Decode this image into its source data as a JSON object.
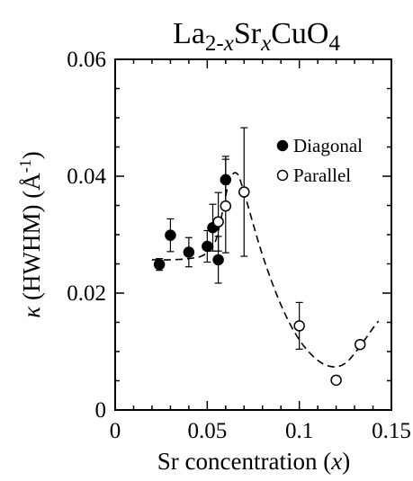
{
  "chart_data": {
    "type": "scatter",
    "title": {
      "base1": "La",
      "sub1": "2-",
      "sub1_italic": "x",
      "base2": "Sr",
      "sub2_italic": "x",
      "base3": "CuO",
      "sub3": "4"
    },
    "xlabel": {
      "text": "Sr concentration (",
      "italic": "x",
      "close": ")"
    },
    "ylabel": {
      "kappa": "κ",
      "text": " (HWHM) (Å",
      "sup": "-1",
      "close": ")"
    },
    "xlim": [
      0,
      0.15
    ],
    "ylim": [
      0,
      0.06
    ],
    "xticks": [
      0,
      0.05,
      0.1,
      0.15
    ],
    "xtick_labels": [
      "0",
      "0.05",
      "0.1",
      "0.15"
    ],
    "yticks": [
      0,
      0.02,
      0.04,
      0.06
    ],
    "ytick_labels": [
      "0",
      "0.02",
      "0.04",
      "0.06"
    ],
    "legend_position": "top-right",
    "grid": false,
    "series": [
      {
        "name": "Diagonal",
        "marker": "filled-circle",
        "color": "#000000",
        "points": [
          {
            "x": 0.024,
            "y": 0.0249,
            "err": 0.001
          },
          {
            "x": 0.03,
            "y": 0.0299,
            "err": 0.0028
          },
          {
            "x": 0.04,
            "y": 0.027,
            "err": 0.0025
          },
          {
            "x": 0.05,
            "y": 0.028,
            "err": 0.0027
          },
          {
            "x": 0.053,
            "y": 0.0312,
            "err": 0.004
          },
          {
            "x": 0.056,
            "y": 0.0257,
            "err": 0.004
          },
          {
            "x": 0.06,
            "y": 0.0394,
            "err": 0.004
          }
        ]
      },
      {
        "name": "Parallel",
        "marker": "open-circle",
        "color": "#000000",
        "points": [
          {
            "x": 0.056,
            "y": 0.0322,
            "err": 0.005
          },
          {
            "x": 0.06,
            "y": 0.0349,
            "err": 0.008
          },
          {
            "x": 0.07,
            "y": 0.0373,
            "err": 0.011
          },
          {
            "x": 0.1,
            "y": 0.0144,
            "err": 0.004
          },
          {
            "x": 0.12,
            "y": 0.0051,
            "err": 0
          },
          {
            "x": 0.133,
            "y": 0.0112,
            "err": 0
          }
        ]
      }
    ],
    "guide_curve": {
      "style": "dashed",
      "x": [
        0.02,
        0.03,
        0.04,
        0.048,
        0.054,
        0.058,
        0.062,
        0.066,
        0.07,
        0.08,
        0.09,
        0.1,
        0.11,
        0.118,
        0.125,
        0.132,
        0.14,
        0.143
      ],
      "y": [
        0.0257,
        0.0257,
        0.0259,
        0.0265,
        0.0285,
        0.0335,
        0.0392,
        0.0405,
        0.0372,
        0.0265,
        0.018,
        0.012,
        0.0085,
        0.0074,
        0.008,
        0.0105,
        0.014,
        0.0152
      ]
    }
  }
}
